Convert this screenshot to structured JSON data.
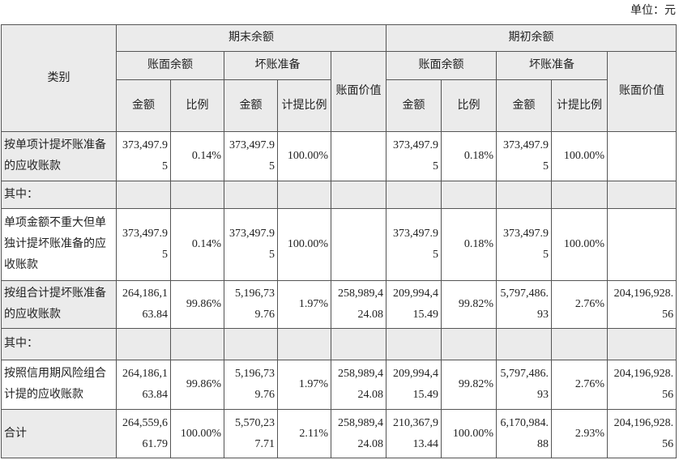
{
  "unit": "单位：元",
  "header": {
    "category": "类别",
    "end": "期末余额",
    "begin": "期初余额",
    "book_balance": "账面余额",
    "bad_debt": "坏账准备",
    "book_value": "账面价值",
    "amount": "金额",
    "ratio": "比例",
    "provision_ratio": "计提比例"
  },
  "rows": [
    {
      "label": "按单项计提坏账准备的应收账款",
      "cells": [
        "373,497.95",
        "0.14%",
        "373,497.95",
        "100.00%",
        null,
        "373,497.95",
        "0.18%",
        "373,497.95",
        "100.00%",
        null
      ]
    },
    {
      "label": "其中：",
      "cells": [
        null,
        null,
        null,
        null,
        null,
        null,
        null,
        null,
        null,
        null
      ]
    },
    {
      "label": "单项金额不重大但单独计提坏账准备的应收账款",
      "cells": [
        "373,497.95",
        "0.14%",
        "373,497.95",
        "100.00%",
        null,
        "373,497.95",
        "0.18%",
        "373,497.95",
        "100.00%",
        null
      ]
    },
    {
      "label": "按组合计提坏账准备的应收账款",
      "cells": [
        "264,186,163.84",
        "99.86%",
        "5,196,739.76",
        "1.97%",
        "258,989,424.08",
        "209,994,415.49",
        "99.82%",
        "5,797,486.93",
        "2.76%",
        "204,196,928.56"
      ]
    },
    {
      "label": "其中：",
      "cells": [
        null,
        null,
        null,
        null,
        null,
        null,
        null,
        null,
        null,
        null
      ]
    },
    {
      "label": "按照信用期风险组合计提的应收账款",
      "cells": [
        "264,186,163.84",
        "99.86%",
        "5,196,739.76",
        "1.97%",
        "258,989,424.08",
        "209,994,415.49",
        "99.82%",
        "5,797,486.93",
        "2.76%",
        "204,196,928.56"
      ]
    },
    {
      "label": "合计",
      "cells": [
        "264,559,661.79",
        "100.00%",
        "5,570,237.71",
        "2.11%",
        "258,989,424.08",
        "210,367,913.44",
        "100.00%",
        "6,170,984.88",
        "2.93%",
        "204,196,928.56"
      ]
    }
  ]
}
